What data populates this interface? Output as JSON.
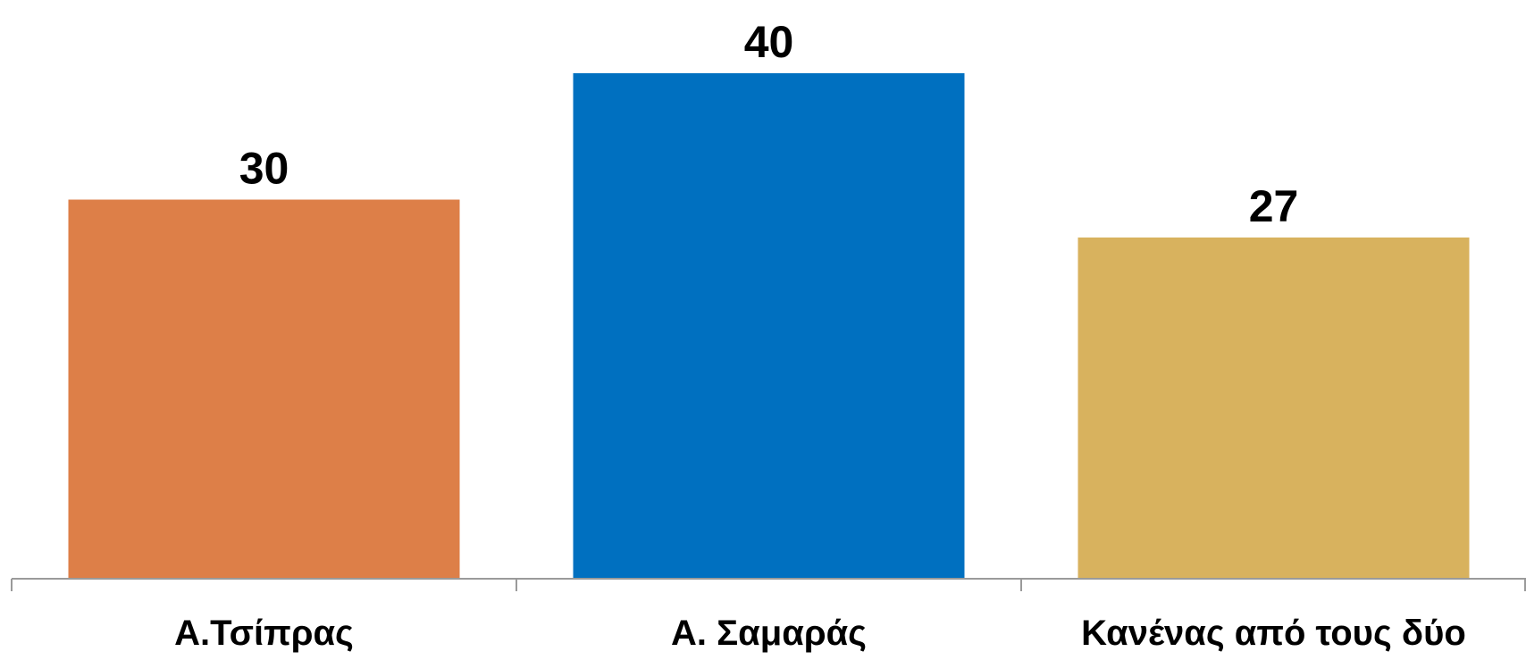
{
  "chart_data": {
    "type": "bar",
    "categories": [
      "Α.Τσίπρας",
      "Α. Σαμαράς",
      "Κανένας από τους δύο"
    ],
    "values": [
      30,
      40,
      27
    ],
    "data_labels": [
      "30",
      "40",
      "27"
    ],
    "colors": [
      "#DD7F48",
      "#0070C0",
      "#D8B25E"
    ],
    "axis_color": "#9A9A9A",
    "ylim": [
      0,
      40
    ],
    "grid": false,
    "legend": "none"
  }
}
